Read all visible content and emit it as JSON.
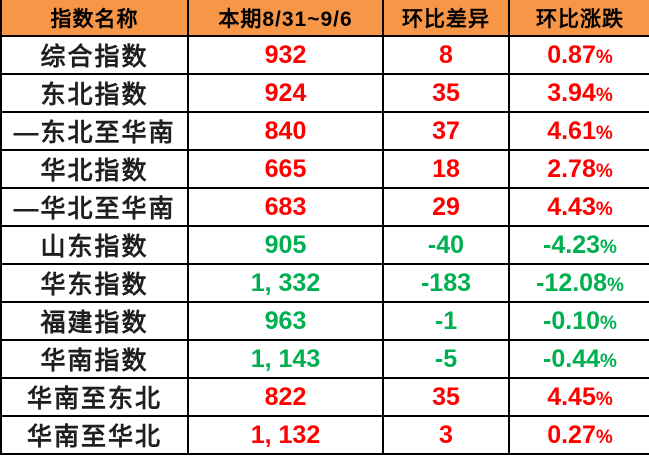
{
  "table": {
    "columns": [
      "指数名称",
      "本期8/31~9/6",
      "环比差异",
      "环比涨跌"
    ],
    "rows": [
      {
        "name": "综合指数",
        "value": "932",
        "diff": "8",
        "pct": "0.87%",
        "trend": "up"
      },
      {
        "name": "东北指数",
        "value": "924",
        "diff": "35",
        "pct": "3.94%",
        "trend": "up"
      },
      {
        "name": "—东北至华南",
        "value": "840",
        "diff": "37",
        "pct": "4.61%",
        "trend": "up"
      },
      {
        "name": "华北指数",
        "value": "665",
        "diff": "18",
        "pct": "2.78%",
        "trend": "up"
      },
      {
        "name": "—华北至华南",
        "value": "683",
        "diff": "29",
        "pct": "4.43%",
        "trend": "up"
      },
      {
        "name": "山东指数",
        "value": "905",
        "diff": "-40",
        "pct": "-4.23%",
        "trend": "down"
      },
      {
        "name": "华东指数",
        "value": "1, 332",
        "diff": "-183",
        "pct": "-12.08%",
        "trend": "down"
      },
      {
        "name": "福建指数",
        "value": "963",
        "diff": "-1",
        "pct": "-0.10%",
        "trend": "down"
      },
      {
        "name": "华南指数",
        "value": "1, 143",
        "diff": "-5",
        "pct": "-0.44%",
        "trend": "down"
      },
      {
        "name": "华南至东北",
        "value": "822",
        "diff": "35",
        "pct": "4.45%",
        "trend": "up"
      },
      {
        "name": "华南至华北",
        "value": "1, 132",
        "diff": "3",
        "pct": "0.27%",
        "trend": "up"
      }
    ]
  },
  "colors": {
    "header_bg": "#F79646",
    "up": "#FF0000",
    "down": "#00B050",
    "border": "#000000"
  },
  "chart_data": {
    "type": "table",
    "title": "",
    "columns": [
      "指数名称",
      "本期8/31~9/6",
      "环比差异",
      "环比涨跌"
    ],
    "rows": [
      [
        "综合指数",
        932,
        8,
        "0.87%"
      ],
      [
        "东北指数",
        924,
        35,
        "3.94%"
      ],
      [
        "—东北至华南",
        840,
        37,
        "4.61%"
      ],
      [
        "华北指数",
        665,
        18,
        "2.78%"
      ],
      [
        "—华北至华南",
        683,
        29,
        "4.43%"
      ],
      [
        "山东指数",
        905,
        -40,
        "-4.23%"
      ],
      [
        "华东指数",
        1332,
        -183,
        "-12.08%"
      ],
      [
        "福建指数",
        963,
        -1,
        "-0.10%"
      ],
      [
        "华南指数",
        1143,
        -5,
        "-0.44%"
      ],
      [
        "华南至东北",
        822,
        35,
        "4.45%"
      ],
      [
        "华南至华北",
        1132,
        3,
        "0.27%"
      ]
    ],
    "value_color_rule": "positive change = red (#FF0000), negative change = green (#00B050)"
  }
}
